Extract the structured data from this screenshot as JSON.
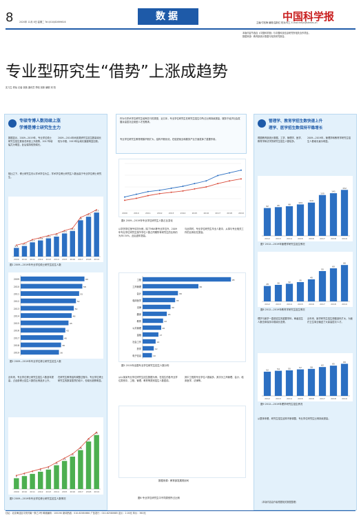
{
  "header": {
    "page_number": "8",
    "date_line": "2020年 12月 8日 星期二  Tel:(010)82699616",
    "section_tag": "数据",
    "masthead": "中国科学报",
    "editors_line": "主编/付松梅 编辑/温新红 校对/何工 E-mail:hmjn@stimes.cn",
    "side_note_1": "本版内容节选自《中国科学报》与中国科技信息研究所相关合作项目。",
    "side_note_2": "数据来源：教育部统计数据与相关研究报告。"
  },
  "article": {
    "headline": "专业型研究生“借势”上涨成趋势",
    "byline": "实习生 佟灿 记者 张茜 通讯员 李晓 张新 编辑 宋 阳"
  },
  "intro": {
    "p1": "作为与学术学位研究生培养并行的类型，近几年，专业学位研究生在研究生招生中所占比例持续提高，服务于经济社会发展对高层次应用型人才的需求。",
    "p2": "专业学位研究生教育规模不断扩大，结构不断优化，在促进就业和服务产业方面发挥了重要作用。"
  },
  "left_card": {
    "title_line1": "专硕专博人数持续上涨",
    "title_line2": "学博是博士研究生主力",
    "para1": "数据显示，2009—2019年，专业学位硕士研究生招生数量总体呈上升趋势，2017年增幅尤为明显，此后保持较快增长。",
    "para2": "2009—2014年间该类研究生招生数量增长较为平稳，2015年后增长速度明显加快。",
    "para3": "相比之下，博士研究生仍以学术学位为主，学术学位博士研究生人数远高于专业学位博士研究生。",
    "caption1": "图1 2009—2019年专业学位硕士研究生招生人数",
    "caption2": "图2 2009—2019年专业学位博士研究生招生人数",
    "caption3": "图3 2009—2019年专业学位博士研究生招生人数情况",
    "para4": "近年来，专业学位博士研究生招生人数逐年提高，占全部博士招生人数的比例逐步上升。",
    "para5": "在研究生教育结构调整过程中，专业学位博士研究生的数量虽然仍较少，但增长趋势明显。"
  },
  "middle": {
    "caption1": "图4 2009—2019年专业学位研究生人数占比变化",
    "para1": "以学历学位授予情况为例，除了MBA等专业学位外，2009年专业学位研究生授予学位人数占同期所有研究生的比例约为38.34%，此后逐年提高。",
    "para2": "与此同时，专业学位研究生毕业人数中，从事与专业相关工作的比例也在提高。",
    "caption2": "图5 2015年全国专业学位研究生招生人数分布",
    "para3": "从以某省专业学位研究生招生数据为例，在招生的各专业学位类别中，工程、管理、教育等类别招生人数居前。",
    "para4": "其中工程类专业学位人数最多，其次为工商管理、会计、临床医学、法律等。",
    "chart_note": "数据来源：教育部发展规划司",
    "caption3": "图6 专业学位研究生中不同类别所占比例"
  },
  "right_card": {
    "title_line1": "管理学、教育学招生数快速上升",
    "title_line2": "理学、医学招生数保持平稳增长",
    "para1": "根据教育部统计数据，工学、管理学、医学、教育学和法学的研究生招生人数较多。",
    "para2": "2009—2019年，管理学和教育学研究生招生人数增长最为明显。",
    "caption1": "图7 2012—2019年管理学研究生招生情况",
    "caption2": "图8 2012—2019年教育学研究生招生情况",
    "para3": "理学与医学一直是招生的重要学科，两者招生人数总体保持平稳增长态势。",
    "caption3": "图9 2012—2019年理学研究生招生情况",
    "para4": "近年来，医学研究生招生规模逐年扩大，为医疗卫生事业输送了大量高层次人才。",
    "para5": "从整体来看，研究生招生结构不断调整，专业学位研究生比例持续提高。",
    "footer_note": "（本版内容由作者根据相关数据整理）"
  },
  "footer": {
    "text": "社址：北京海淀区中关村南一条乙3号  邮政编码：100190  新闻热线：010-62580680  广告发行：010-62580685  定价：2.00元  年价：360元"
  },
  "chart_data": [
    {
      "type": "bar",
      "title": "图1 2009—2019年专业学位硕士研究生招生人数",
      "categories": [
        "2009",
        "2010",
        "2011",
        "2012",
        "2013",
        "2014",
        "2015",
        "2016",
        "2017",
        "2018",
        "2019"
      ],
      "values": [
        9.6,
        11.7,
        15.7,
        17.8,
        20.1,
        22.0,
        25.5,
        28.2,
        40.0,
        43.9,
        48.5
      ],
      "overlay_line": true,
      "ylim": [
        0,
        60
      ]
    },
    {
      "type": "bar",
      "orientation": "horizontal",
      "title": "图2 2009—2019年专业学位博士研究生招生人数",
      "categories": [
        "2009",
        "2010",
        "2011",
        "2012",
        "2013",
        "2014",
        "2015",
        "2016",
        "2017",
        "2018",
        "2019"
      ],
      "values": [
        60,
        58,
        55,
        52,
        50,
        48,
        45,
        42,
        40,
        38,
        36
      ],
      "xlim": [
        0,
        70
      ]
    },
    {
      "type": "bar",
      "title": "图3 2009—2019年专业学位博士研究生招生人数情况",
      "categories": [
        "2009",
        "2010",
        "2011",
        "2012",
        "2013",
        "2014",
        "2015",
        "2016",
        "2017",
        "2018",
        "2019"
      ],
      "values": [
        5,
        6,
        7,
        8,
        9,
        11,
        13,
        15,
        18,
        22,
        25
      ],
      "overlay_line": true,
      "ylim": [
        0,
        30
      ]
    },
    {
      "type": "line",
      "title": "图4 2009—2019年专业学位研究生人数占比变化",
      "x": [
        "2009",
        "2010",
        "2011",
        "2012",
        "2013",
        "2014",
        "2015",
        "2016",
        "2017",
        "2018",
        "2019"
      ],
      "series": [
        {
          "values": [
            20,
            24,
            28,
            30,
            33,
            36,
            40,
            44,
            52,
            56,
            60
          ]
        },
        {
          "values": [
            15,
            18,
            22,
            25,
            27,
            29,
            32,
            35,
            40,
            44,
            47
          ]
        }
      ],
      "ylim": [
        0,
        70
      ]
    },
    {
      "type": "bar",
      "orientation": "horizontal",
      "title": "图5 2015年全国专业学位研究生招生人数分布",
      "categories": [
        "工程",
        "工商管理",
        "会计",
        "临床医学",
        "法律",
        "翻译",
        "教育",
        "公共管理",
        "金融",
        "社会工作",
        "药学",
        "电子信息"
      ],
      "values": [
        95,
        60,
        38,
        35,
        30,
        26,
        22,
        20,
        17,
        14,
        12,
        10
      ],
      "xlim": [
        0,
        100
      ]
    },
    {
      "type": "bar",
      "title": "图7 2012—2019年管理学研究生招生情况",
      "categories": [
        "2012",
        "2013",
        "2014",
        "2015",
        "2016",
        "2017",
        "2018",
        "2019"
      ],
      "values": [
        92,
        95,
        98,
        104,
        110,
        135,
        141,
        152
      ],
      "ylim": [
        0,
        180
      ]
    },
    {
      "type": "bar",
      "title": "图8 2012—2019年教育学研究生招生情况",
      "categories": [
        "2012",
        "2013",
        "2014",
        "2015",
        "2016",
        "2017",
        "2018",
        "2019"
      ],
      "values": [
        28,
        30,
        32,
        35,
        40,
        55,
        60,
        66
      ],
      "ylim": [
        0,
        80
      ]
    },
    {
      "type": "bar",
      "title": "图9 2012—2019年理学研究生招生情况",
      "categories": [
        "2012",
        "2013",
        "2014",
        "2015",
        "2016",
        "2017",
        "2018",
        "2019"
      ],
      "values": [
        52,
        54,
        55,
        57,
        58,
        62,
        65,
        69
      ],
      "ylim": [
        0,
        80
      ]
    }
  ],
  "colors": {
    "accent_blue": "#1e5aa8",
    "masthead_red": "#c81e1e",
    "card_bg": "#e3f1fb",
    "bar_blue": "#2b6fc2",
    "bar_green": "#4caf50",
    "line_red": "#d94b3a"
  }
}
